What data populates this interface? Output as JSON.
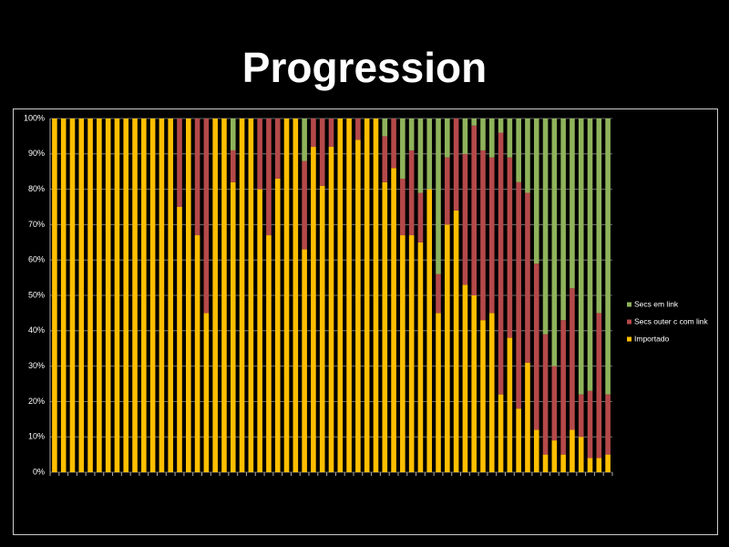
{
  "chart_data": {
    "type": "stacked_bar",
    "title": "Progression",
    "categories": [
      null,
      null,
      null,
      null,
      null,
      null,
      null,
      null,
      null,
      null,
      null,
      null,
      null,
      null,
      null,
      null,
      null,
      null,
      null,
      null,
      null,
      null,
      null,
      null,
      null,
      null,
      null,
      null,
      null,
      null,
      null,
      null,
      null,
      null,
      null,
      null,
      null,
      null,
      null,
      null,
      null,
      null,
      null,
      null,
      null,
      null,
      null,
      null,
      null,
      null,
      null,
      null,
      null,
      null,
      null,
      null,
      null,
      null,
      null,
      null,
      null,
      null,
      null
    ],
    "series": [
      {
        "name": "Importado",
        "color": "#ffbf00",
        "values": [
          100,
          100,
          100,
          100,
          100,
          100,
          100,
          100,
          100,
          100,
          100,
          100,
          100,
          100,
          75,
          100,
          67,
          45,
          100,
          100,
          82,
          100,
          100,
          80,
          67,
          83,
          100,
          100,
          63,
          92,
          81,
          92,
          100,
          100,
          94,
          100,
          100,
          82,
          86,
          67,
          67,
          65,
          80,
          45,
          70,
          74,
          53,
          50,
          43,
          45,
          22,
          38,
          18,
          31,
          12,
          5,
          9,
          5,
          12,
          10,
          4,
          4,
          5
        ]
      },
      {
        "name": "Secs outer c com link",
        "color": "#b5494a",
        "values": [
          0,
          0,
          0,
          0,
          0,
          0,
          0,
          0,
          0,
          0,
          0,
          0,
          0,
          0,
          25,
          0,
          33,
          55,
          0,
          0,
          9,
          0,
          0,
          20,
          33,
          17,
          0,
          0,
          25,
          8,
          19,
          8,
          0,
          0,
          6,
          0,
          0,
          13,
          14,
          16,
          24,
          14,
          0,
          11,
          19,
          26,
          37,
          48,
          48,
          44,
          74,
          51,
          64,
          48,
          47,
          34,
          21,
          38,
          40,
          12,
          19,
          41,
          17
        ]
      },
      {
        "name": "Secs em link",
        "color": "#8fb35b",
        "values": [
          0,
          0,
          0,
          0,
          0,
          0,
          0,
          0,
          0,
          0,
          0,
          0,
          0,
          0,
          0,
          0,
          0,
          0,
          0,
          0,
          9,
          0,
          0,
          0,
          0,
          0,
          0,
          0,
          12,
          0,
          0,
          0,
          0,
          0,
          0,
          0,
          0,
          5,
          0,
          17,
          9,
          21,
          20,
          44,
          11,
          0,
          10,
          2,
          9,
          11,
          4,
          11,
          18,
          21,
          41,
          61,
          70,
          57,
          48,
          78,
          77,
          55,
          78
        ]
      }
    ],
    "ylim": [
      0,
      100
    ],
    "yticks": [
      {
        "value": 0,
        "label": "0%"
      },
      {
        "value": 10,
        "label": "10%"
      },
      {
        "value": 20,
        "label": "20%"
      },
      {
        "value": 30,
        "label": "30%"
      },
      {
        "value": 40,
        "label": "40%"
      },
      {
        "value": 50,
        "label": "50%"
      },
      {
        "value": 60,
        "label": "60%"
      },
      {
        "value": 70,
        "label": "70%"
      },
      {
        "value": 80,
        "label": "80%"
      },
      {
        "value": 90,
        "label": "90%"
      },
      {
        "value": 100,
        "label": "100%"
      }
    ],
    "grid": true,
    "legend": "right"
  }
}
